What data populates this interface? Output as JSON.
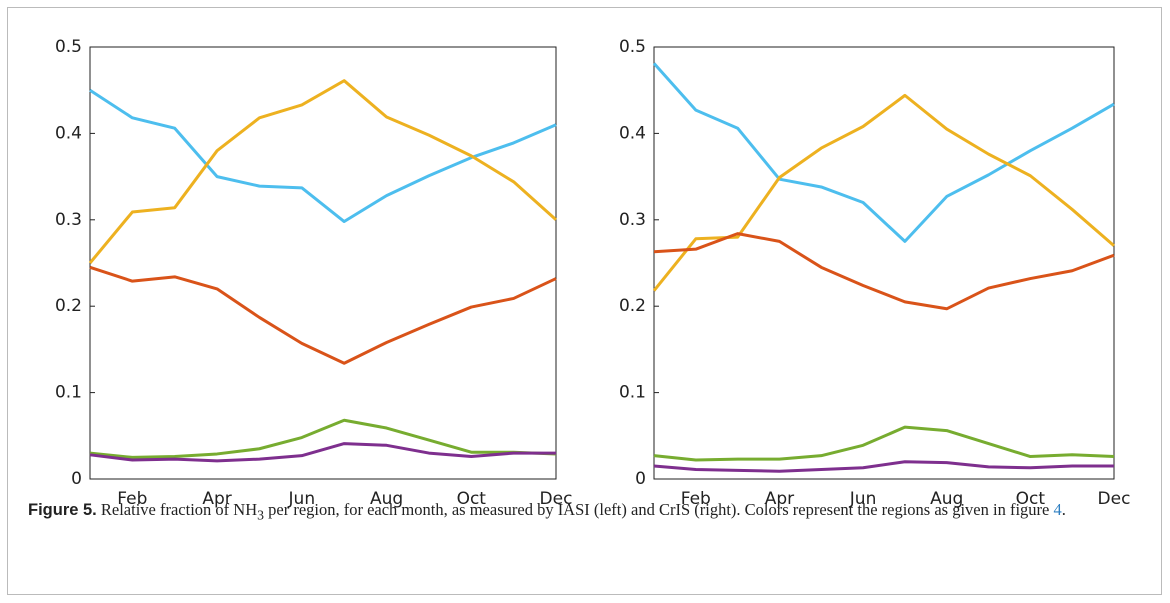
{
  "chart_data": [
    {
      "type": "line",
      "categories": [
        null,
        "Feb",
        null,
        "Apr",
        null,
        "Jun",
        null,
        "Aug",
        null,
        "Oct",
        null,
        "Dec"
      ],
      "ylim": [
        0,
        0.5
      ],
      "yticks": [
        0,
        0.1,
        0.2,
        0.3,
        0.4,
        0.5
      ],
      "series": [
        {
          "color": "#4dbeee",
          "values": [
            0.45,
            0.418,
            0.406,
            0.35,
            0.339,
            0.337,
            0.298,
            0.328,
            0.351,
            0.372,
            0.389,
            0.41
          ]
        },
        {
          "color": "#edb120",
          "values": [
            0.25,
            0.309,
            0.314,
            0.38,
            0.418,
            0.433,
            0.461,
            0.419,
            0.398,
            0.374,
            0.344,
            0.3
          ]
        },
        {
          "color": "#d95319",
          "values": [
            0.245,
            0.229,
            0.234,
            0.22,
            0.187,
            0.157,
            0.134,
            0.158,
            0.179,
            0.199,
            0.209,
            0.232
          ]
        },
        {
          "color": "#77ac30",
          "values": [
            0.03,
            0.025,
            0.026,
            0.029,
            0.035,
            0.048,
            0.068,
            0.059,
            0.045,
            0.031,
            0.031,
            0.029
          ]
        },
        {
          "color": "#7e2f8e",
          "values": [
            0.028,
            0.022,
            0.023,
            0.021,
            0.023,
            0.027,
            0.041,
            0.039,
            0.03,
            0.026,
            0.03,
            0.03
          ]
        }
      ]
    },
    {
      "type": "line",
      "categories": [
        null,
        "Feb",
        null,
        "Apr",
        null,
        "Jun",
        null,
        "Aug",
        null,
        "Oct",
        null,
        "Dec"
      ],
      "ylim": [
        0,
        0.5
      ],
      "yticks": [
        0,
        0.1,
        0.2,
        0.3,
        0.4,
        0.5
      ],
      "series": [
        {
          "color": "#4dbeee",
          "values": [
            0.481,
            0.427,
            0.406,
            0.347,
            0.338,
            0.32,
            0.275,
            0.327,
            0.352,
            0.38,
            0.406,
            0.434
          ]
        },
        {
          "color": "#edb120",
          "values": [
            0.218,
            0.278,
            0.28,
            0.349,
            0.383,
            0.408,
            0.444,
            0.405,
            0.376,
            0.351,
            0.312,
            0.27
          ]
        },
        {
          "color": "#d95319",
          "values": [
            0.263,
            0.266,
            0.284,
            0.275,
            0.245,
            0.224,
            0.205,
            0.197,
            0.221,
            0.232,
            0.241,
            0.259
          ]
        },
        {
          "color": "#77ac30",
          "values": [
            0.027,
            0.022,
            0.023,
            0.023,
            0.027,
            0.039,
            0.06,
            0.056,
            0.041,
            0.026,
            0.028,
            0.026
          ]
        },
        {
          "color": "#7e2f8e",
          "values": [
            0.015,
            0.011,
            0.01,
            0.009,
            0.011,
            0.013,
            0.02,
            0.019,
            0.014,
            0.013,
            0.015,
            0.015
          ]
        }
      ]
    }
  ],
  "caption": {
    "label": "Figure 5.",
    "text_1": "Relative fraction of NH",
    "subscript": "3",
    "text_2": " per region, for each month, as measured by IASI (left) and CrIS (right). Colors represent the regions as given in figure ",
    "link": "4",
    "text_3": "."
  }
}
